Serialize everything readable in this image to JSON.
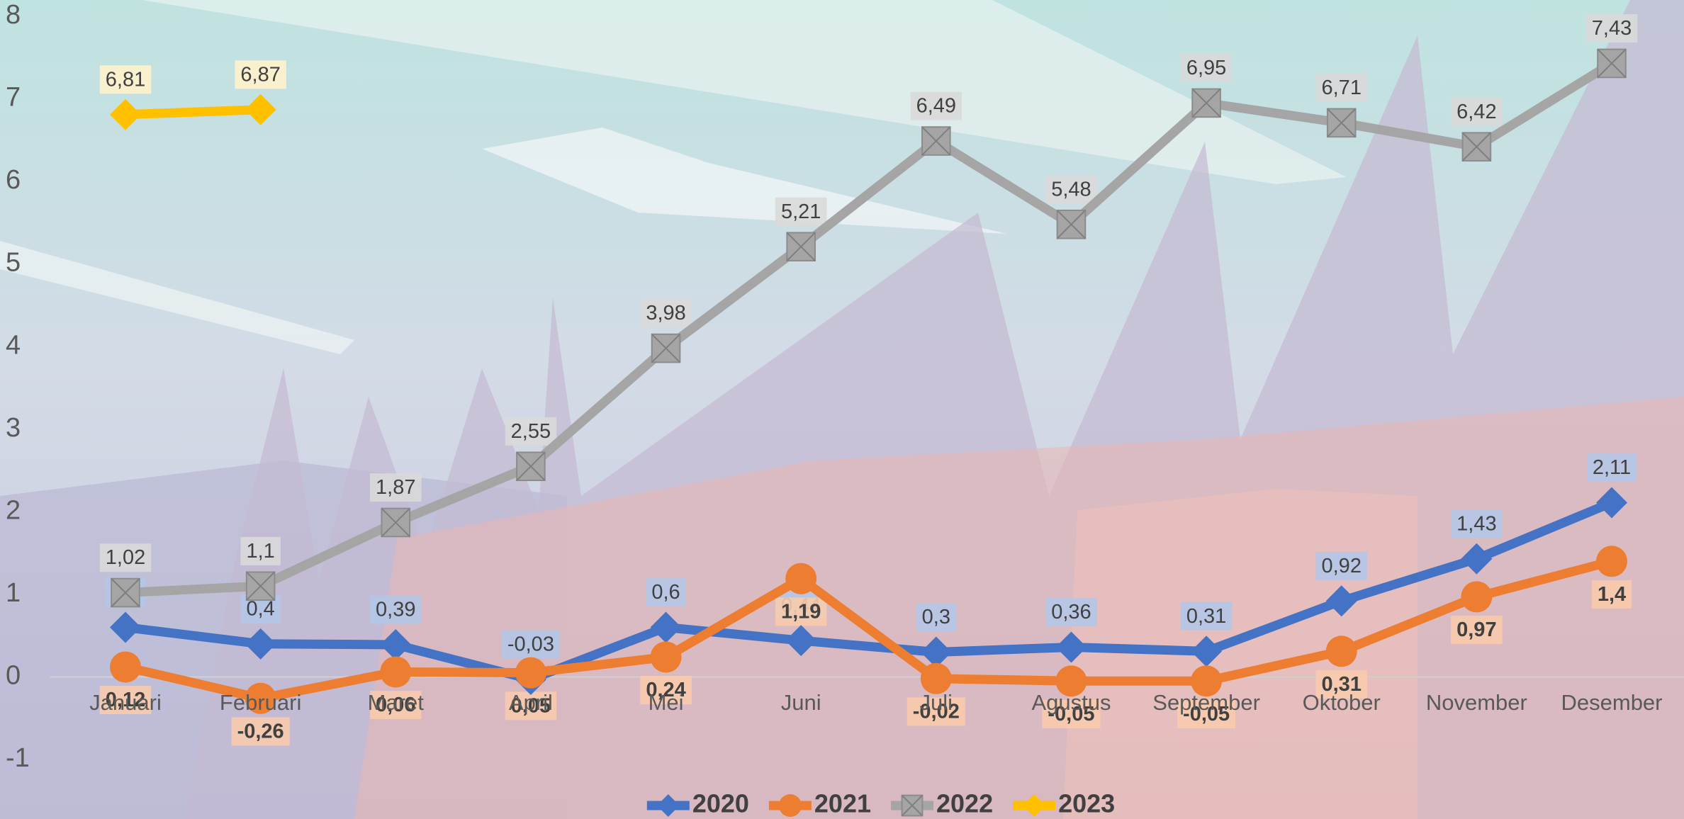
{
  "chart_data": {
    "type": "line",
    "categories": [
      "Januari",
      "Februari",
      "Maret",
      "April",
      "Mei",
      "Juni",
      "Juli",
      "Agustus",
      "September",
      "Oktober",
      "November",
      "Desember"
    ],
    "ylim": [
      -1,
      8
    ],
    "yticks": [
      -1,
      0,
      1,
      2,
      3,
      4,
      5,
      6,
      7,
      8
    ],
    "grid": false,
    "legend": "bottom",
    "series": [
      {
        "name": "2020",
        "color": "#4472c4",
        "marker": "diamond",
        "values": [
          0.6,
          0.4,
          0.39,
          -0.03,
          0.6,
          0.44,
          0.3,
          0.36,
          0.31,
          0.92,
          1.43,
          2.11
        ],
        "value_labels": [
          "0,6",
          "0,4",
          "0,39",
          "-0,03",
          "0,6",
          "0,44",
          "0,3",
          "0,36",
          "0,31",
          "0,92",
          "1,43",
          "2,11"
        ]
      },
      {
        "name": "2021",
        "color": "#ed7d31",
        "marker": "circle",
        "values": [
          0.12,
          -0.26,
          0.06,
          0.05,
          0.24,
          1.19,
          -0.02,
          -0.05,
          -0.05,
          0.31,
          0.97,
          1.4
        ],
        "value_labels": [
          "0,12",
          "-0,26",
          "0,06",
          "0,05",
          "0,24",
          "1,19",
          "-0,02",
          "-0,05",
          "-0,05",
          "0,31",
          "0,97",
          "1,4"
        ]
      },
      {
        "name": "2022",
        "color": "#a5a5a5",
        "marker": "xsquare",
        "values": [
          1.02,
          1.1,
          1.87,
          2.55,
          3.98,
          5.21,
          6.49,
          5.48,
          6.95,
          6.71,
          6.42,
          7.43
        ],
        "value_labels": [
          "1,02",
          "1,1",
          "1,87",
          "2,55",
          "3,98",
          "5,21",
          "6,49",
          "5,48",
          "6,95",
          "6,71",
          "6,42",
          "7,43"
        ]
      },
      {
        "name": "2023",
        "color": "#ffc000",
        "marker": "diamond",
        "values": [
          6.81,
          6.87,
          null,
          null,
          null,
          null,
          null,
          null,
          null,
          null,
          null,
          null
        ],
        "value_labels": [
          "6,81",
          "6,87",
          null,
          null,
          null,
          null,
          null,
          null,
          null,
          null,
          null,
          null
        ]
      }
    ]
  }
}
